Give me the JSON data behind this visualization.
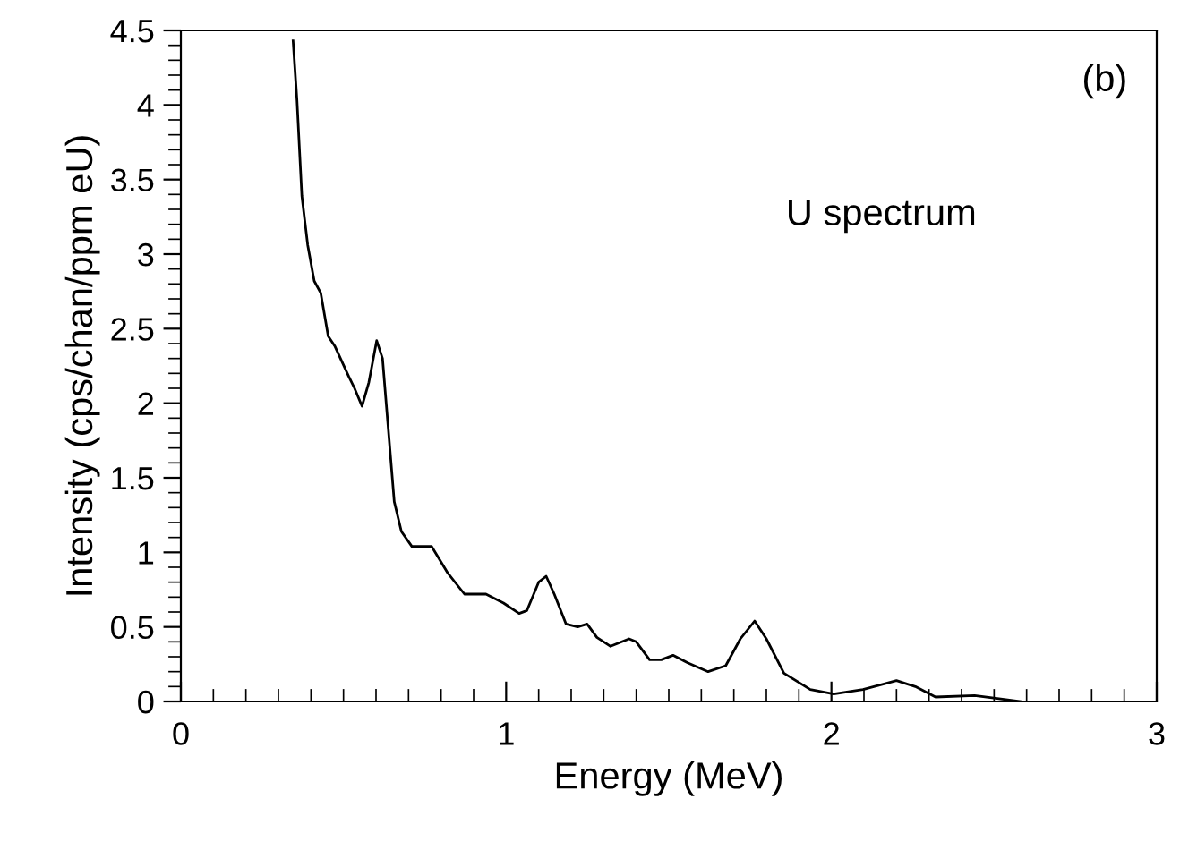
{
  "chart_data": {
    "type": "line",
    "xlabel": "Energy (MeV)",
    "ylabel": "Intensity (cps/chan/ppm eU)",
    "annotations": [
      "(b)",
      "U spectrum"
    ],
    "xlim": [
      0,
      3
    ],
    "xticks": [
      0,
      1,
      2,
      3
    ],
    "ylim": [
      0,
      4.5
    ],
    "yticks": [
      0,
      0.5,
      1,
      1.5,
      2,
      2.5,
      3,
      3.5,
      4,
      4.5
    ],
    "grid": false,
    "series": [
      {
        "color": "#000000",
        "x": [
          0.345,
          0.357,
          0.372,
          0.39,
          0.41,
          0.43,
          0.453,
          0.474,
          0.516,
          0.534,
          0.557,
          0.578,
          0.602,
          0.62,
          0.638,
          0.656,
          0.678,
          0.71,
          0.771,
          0.821,
          0.872,
          0.938,
          0.992,
          1.04,
          1.064,
          1.1,
          1.123,
          1.148,
          1.184,
          1.22,
          1.249,
          1.279,
          1.321,
          1.378,
          1.4,
          1.441,
          1.477,
          1.513,
          1.558,
          1.621,
          1.675,
          1.72,
          1.764,
          1.8,
          1.854,
          1.935,
          2.007,
          2.097,
          2.2,
          2.258,
          2.32,
          2.44,
          2.51,
          2.58
        ],
        "values": [
          4.43,
          4.03,
          3.39,
          3.06,
          2.82,
          2.74,
          2.45,
          2.38,
          2.18,
          2.1,
          1.98,
          2.14,
          2.42,
          2.3,
          1.82,
          1.34,
          1.14,
          1.04,
          1.04,
          0.86,
          0.72,
          0.72,
          0.66,
          0.59,
          0.61,
          0.8,
          0.84,
          0.72,
          0.52,
          0.5,
          0.52,
          0.43,
          0.37,
          0.42,
          0.4,
          0.28,
          0.28,
          0.31,
          0.26,
          0.2,
          0.24,
          0.42,
          0.54,
          0.42,
          0.19,
          0.08,
          0.05,
          0.08,
          0.14,
          0.1,
          0.03,
          0.04,
          0.02,
          0.0
        ]
      }
    ]
  }
}
